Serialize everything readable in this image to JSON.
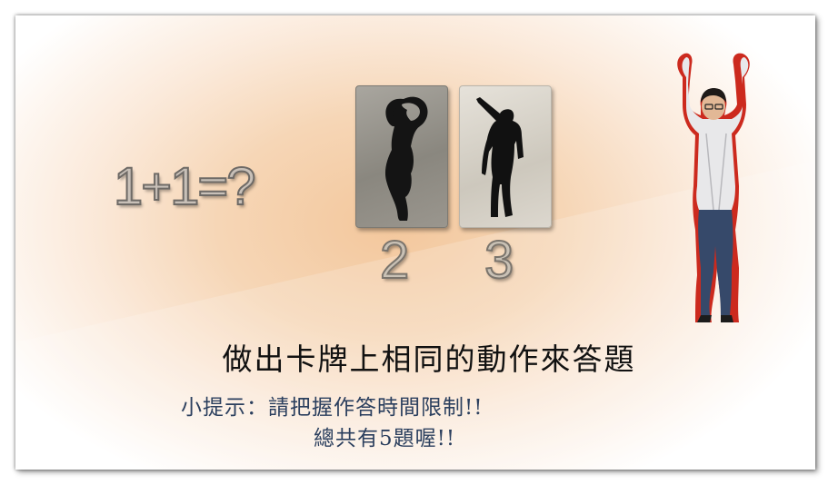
{
  "question": "1+1=?",
  "cards": [
    {
      "label": "2",
      "pose": "arms-curved-over-head-silhouette"
    },
    {
      "label": "3",
      "pose": "pointing-up-silhouette"
    }
  ],
  "instruction": "做出卡牌上相同的動作來答題",
  "hint_line1": "小提示：請把握作答時間限制!!",
  "hint_line2": "總共有5題喔!!",
  "colors": {
    "background_center": "#f3c79c",
    "hint_text": "#2b3f5e",
    "player_outline": "#d42a1c"
  }
}
